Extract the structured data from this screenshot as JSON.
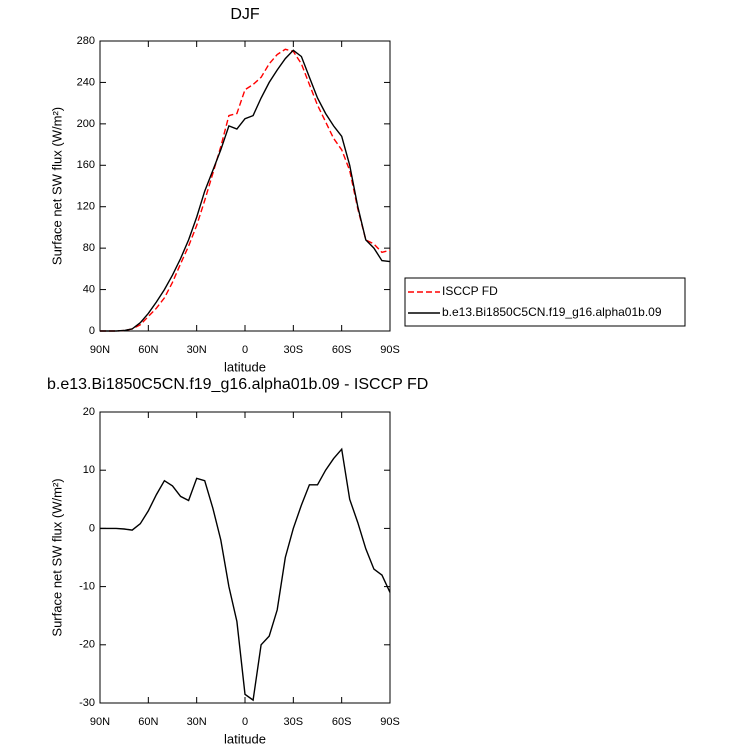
{
  "chart_data": [
    {
      "type": "line",
      "title": "DJF",
      "xlabel": "latitude",
      "ylabel": "Surface net SW flux (W/m²)",
      "x": [
        90,
        85,
        80,
        75,
        70,
        65,
        60,
        55,
        50,
        45,
        40,
        35,
        30,
        25,
        20,
        15,
        10,
        5,
        0,
        -5,
        -10,
        -15,
        -20,
        -25,
        -30,
        -35,
        -40,
        -45,
        -50,
        -55,
        -60,
        -65,
        -70,
        -75,
        -80,
        -85,
        -90
      ],
      "series": [
        {
          "name": "ISCCP FD",
          "color": "#ff0000",
          "dash": true,
          "values": [
            0,
            0,
            0,
            0.5,
            2,
            6,
            14,
            22,
            32,
            47,
            65,
            82,
            102,
            126,
            152,
            178,
            208,
            210,
            233,
            238,
            245,
            258,
            267,
            272,
            270,
            258,
            238,
            218,
            202,
            186,
            175,
            155,
            118,
            88,
            84,
            76,
            78
          ]
        },
        {
          "name": "b.e13.Bi1850C5CN.f19_g16.alpha01b.09",
          "color": "#000000",
          "dash": false,
          "values": [
            0,
            0,
            0,
            0.5,
            2,
            8,
            17,
            28,
            40,
            54,
            70,
            88,
            110,
            135,
            155,
            175,
            198,
            195,
            205,
            208,
            225,
            240,
            252,
            263,
            271,
            265,
            245,
            225,
            210,
            198,
            188,
            160,
            120,
            88,
            80,
            68,
            67
          ]
        }
      ],
      "xlim": [
        90,
        -90
      ],
      "xticks": [
        {
          "value": 90,
          "label": "90N"
        },
        {
          "value": 60,
          "label": "60N"
        },
        {
          "value": 30,
          "label": "30N"
        },
        0,
        {
          "value": -30,
          "label": "30S"
        },
        {
          "value": -60,
          "label": "60S"
        },
        {
          "value": -90,
          "label": "90S"
        }
      ],
      "ylim": [
        0,
        280
      ],
      "yticks": [
        0,
        40,
        80,
        120,
        160,
        200,
        240,
        280
      ],
      "legend": "right"
    },
    {
      "type": "line",
      "title": "b.e13.Bi1850C5CN.f19_g16.alpha01b.09 - ISCCP FD",
      "xlabel": "latitude",
      "ylabel": "Surface net SW flux (W/m²)",
      "x": [
        90,
        85,
        80,
        75,
        70,
        65,
        60,
        55,
        50,
        45,
        40,
        35,
        30,
        25,
        20,
        15,
        10,
        5,
        0,
        -5,
        -10,
        -15,
        -20,
        -25,
        -30,
        -35,
        -40,
        -45,
        -50,
        -55,
        -60,
        -65,
        -70,
        -75,
        -80,
        -85,
        -90
      ],
      "values": [
        0,
        0,
        0,
        -0.1,
        -0.3,
        0.8,
        3,
        5.8,
        8.2,
        7.3,
        5.5,
        4.8,
        8.6,
        8.2,
        3.5,
        -2,
        -10,
        -16,
        -28.5,
        -29.5,
        -20,
        -18.5,
        -14,
        -5,
        0,
        4,
        7.5,
        7.5,
        10,
        12,
        13.6,
        5,
        1,
        -3.5,
        -7,
        -8,
        -11
      ],
      "color": "#000000",
      "xlim": [
        90,
        -90
      ],
      "xticks": [
        {
          "value": 90,
          "label": "90N"
        },
        {
          "value": 60,
          "label": "60N"
        },
        {
          "value": 30,
          "label": "30N"
        },
        0,
        {
          "value": -30,
          "label": "30S"
        },
        {
          "value": -60,
          "label": "60S"
        },
        {
          "value": -90,
          "label": "90S"
        }
      ],
      "ylim": [
        -30,
        20
      ],
      "yticks": [
        -30,
        -20,
        -10,
        0,
        10,
        20
      ]
    }
  ]
}
